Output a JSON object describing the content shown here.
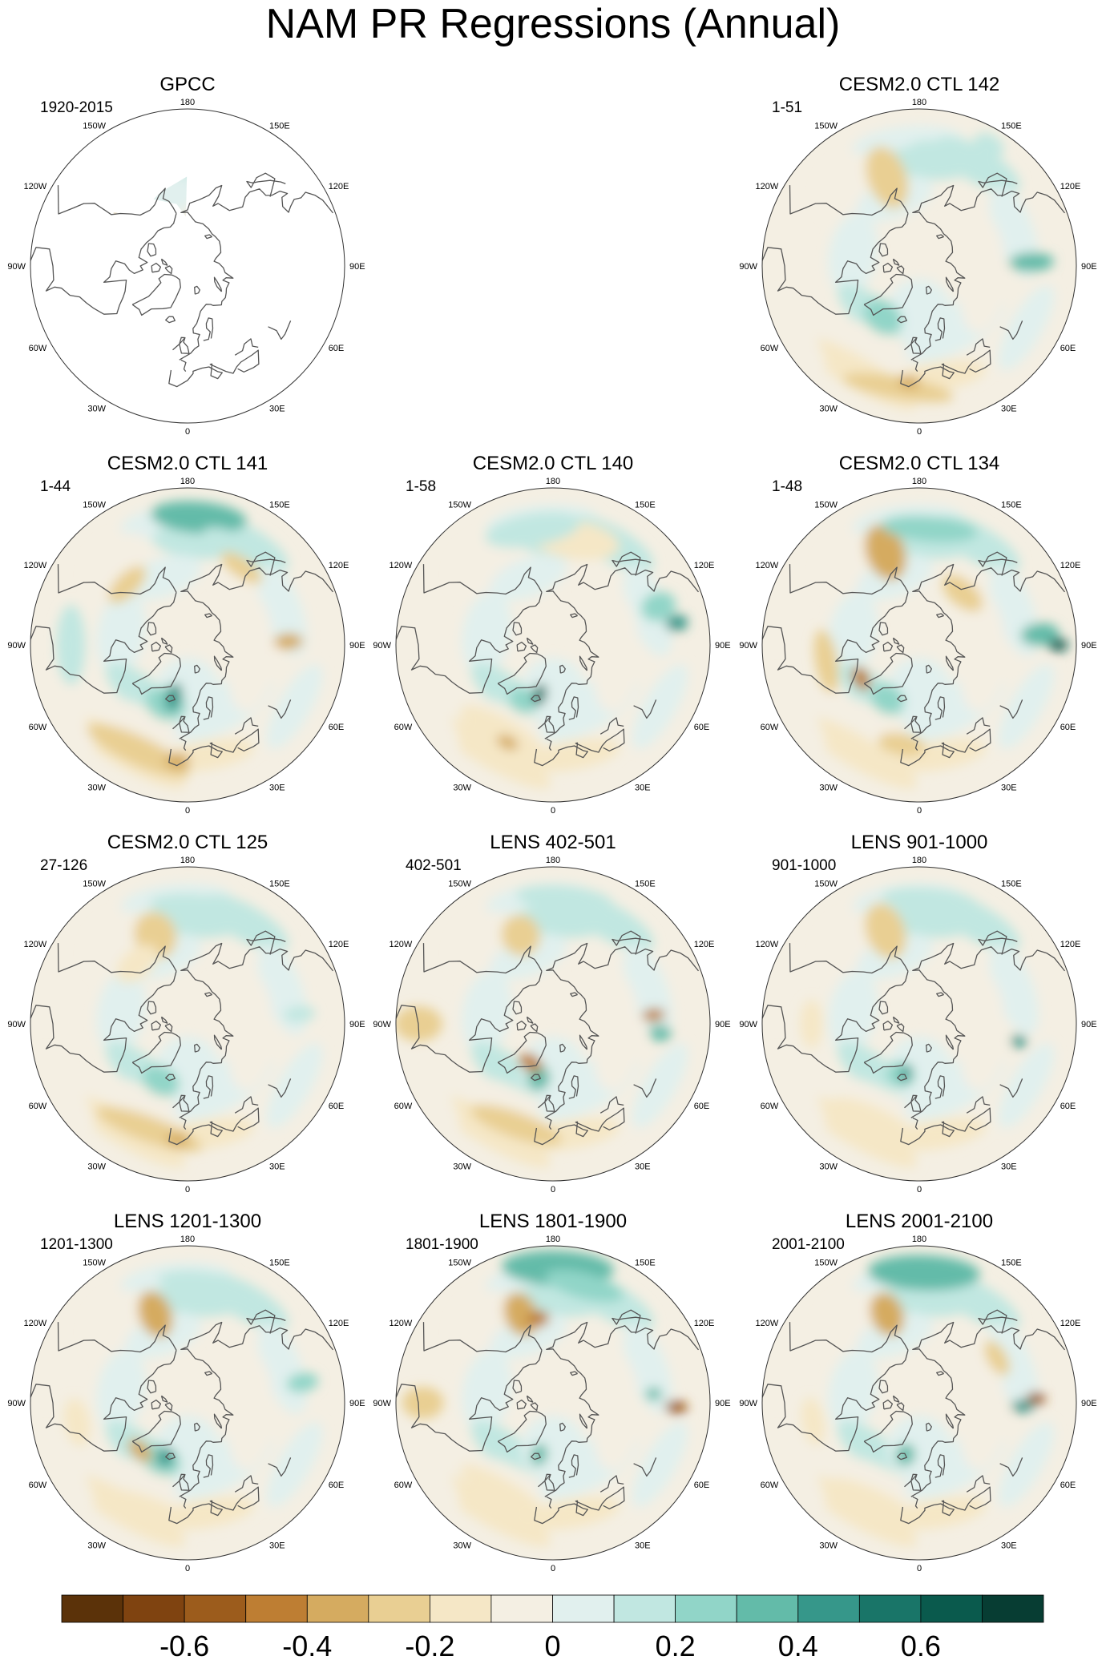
{
  "figure": {
    "title": "NAM PR Regressions (Annual)"
  },
  "panels": [
    {
      "title": "GPCC",
      "period": "1920-2015",
      "variant": "obs"
    },
    {
      "title": "CESM2.0 CTL 142",
      "period": "1-51",
      "variant": "a"
    },
    {
      "title": "CESM2.0 CTL 141",
      "period": "1-44",
      "variant": "b"
    },
    {
      "title": "CESM2.0 CTL 140",
      "period": "1-58",
      "variant": "c"
    },
    {
      "title": "CESM2.0 CTL 134",
      "period": "1-48",
      "variant": "d"
    },
    {
      "title": "CESM2.0 CTL 125",
      "period": "27-126",
      "variant": "e"
    },
    {
      "title": "LENS 402-501",
      "period": "402-501",
      "variant": "f"
    },
    {
      "title": "LENS 901-1000",
      "period": "901-1000",
      "variant": "g"
    },
    {
      "title": "LENS 1201-1300",
      "period": "1201-1300",
      "variant": "h"
    },
    {
      "title": "LENS 1801-1900",
      "period": "1801-1900",
      "variant": "i"
    },
    {
      "title": "LENS 2001-2100",
      "period": "2001-2100",
      "variant": "j"
    }
  ],
  "longitude_labels": [
    "180",
    "150E",
    "120E",
    "90E",
    "60E",
    "30E",
    "0",
    "30W",
    "60W",
    "90W",
    "120W",
    "150W"
  ],
  "colorbar": {
    "colors": [
      "#5b3209",
      "#7f4310",
      "#9c5c1c",
      "#be7e33",
      "#d5ab60",
      "#e9cf93",
      "#f5e7c6",
      "#f4efe3",
      "#e1f0ee",
      "#c1e7e1",
      "#91d5c8",
      "#63bba9",
      "#36978a",
      "#197568",
      "#0a5a4d",
      "#073d33"
    ],
    "tick_labels": [
      "-0.6",
      "-0.4",
      "-0.2",
      "0",
      "0.2",
      "0.4",
      "0.6"
    ],
    "tick_values": [
      -0.6,
      -0.4,
      -0.2,
      0,
      0.2,
      0.4,
      0.6
    ],
    "range": [
      -0.8,
      0.8
    ]
  },
  "chart_data": {
    "type": "heatmap",
    "title": "NAM PR Regressions (Annual)",
    "projection": "north polar stereographic",
    "variable": "precipitation regression onto NAM",
    "color_scale_min": -0.8,
    "color_scale_max": 0.8,
    "panels": [
      "GPCC",
      "CESM2.0 CTL 142",
      "CESM2.0 CTL 141",
      "CESM2.0 CTL 140",
      "CESM2.0 CTL 134",
      "CESM2.0 CTL 125",
      "LENS 402-501",
      "LENS 901-1000",
      "LENS 1201-1300",
      "LENS 1801-1900",
      "LENS 2001-2100"
    ]
  }
}
